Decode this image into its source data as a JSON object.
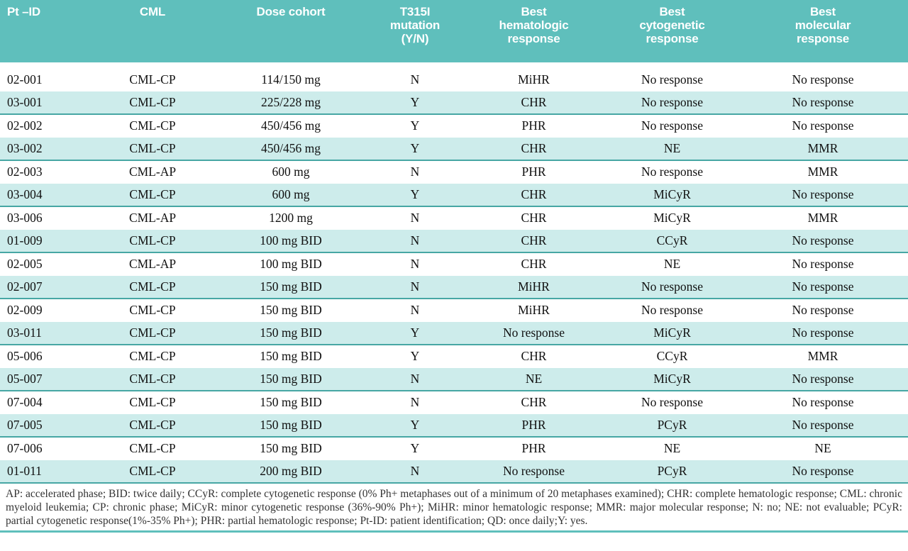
{
  "table": {
    "headers": [
      "Pt –ID",
      "CML",
      "Dose cohort",
      "T315I\nmutation\n(Y/N)",
      "Best\nhematologic\nresponse",
      "Best\ncytogenetic\nresponse",
      "Best\nmolecular\nresponse"
    ],
    "rows": [
      [
        "02-001",
        "CML-CP",
        "114/150 mg",
        "N",
        "MiHR",
        "No response",
        "No response"
      ],
      [
        "03-001",
        "CML-CP",
        "225/228 mg",
        "Y",
        "CHR",
        "No response",
        "No response"
      ],
      [
        "02-002",
        "CML-CP",
        "450/456 mg",
        "Y",
        "PHR",
        "No response",
        "No response"
      ],
      [
        "03-002",
        "CML-CP",
        "450/456 mg",
        "Y",
        "CHR",
        "NE",
        "MMR"
      ],
      [
        "02-003",
        "CML-AP",
        "600 mg",
        "N",
        "PHR",
        "No response",
        "MMR"
      ],
      [
        "03-004",
        "CML-CP",
        "600 mg",
        "Y",
        "CHR",
        "MiCyR",
        "No response"
      ],
      [
        "03-006",
        "CML-AP",
        "1200 mg",
        "N",
        "CHR",
        "MiCyR",
        "MMR"
      ],
      [
        "01-009",
        "CML-CP",
        "100 mg BID",
        "N",
        "CHR",
        "CCyR",
        "No response"
      ],
      [
        "02-005",
        "CML-AP",
        "100 mg BID",
        "N",
        "CHR",
        "NE",
        "No response"
      ],
      [
        "02-007",
        "CML-CP",
        "150 mg BID",
        "N",
        "MiHR",
        "No response",
        "No response"
      ],
      [
        "02-009",
        "CML-CP",
        "150 mg BID",
        "N",
        "MiHR",
        "No response",
        "No response"
      ],
      [
        "03-011",
        "CML-CP",
        "150 mg BID",
        "Y",
        "No response",
        "MiCyR",
        "No response"
      ],
      [
        "05-006",
        "CML-CP",
        "150 mg BID",
        "Y",
        "CHR",
        "CCyR",
        "MMR"
      ],
      [
        "05-007",
        "CML-CP",
        "150 mg BID",
        "N",
        "NE",
        "MiCyR",
        "No response"
      ],
      [
        "07-004",
        "CML-CP",
        "150 mg BID",
        "N",
        "CHR",
        "No response",
        "No response"
      ],
      [
        "07-005",
        "CML-CP",
        "150 mg BID",
        "Y",
        "PHR",
        "PCyR",
        "No response"
      ],
      [
        "07-006",
        "CML-CP",
        "150 mg BID",
        "Y",
        "PHR",
        "NE",
        "NE"
      ],
      [
        "01-011",
        "CML-CP",
        "200 mg BID",
        "N",
        "No response",
        "PCyR",
        "No response"
      ]
    ]
  },
  "footnote": "AP: accelerated phase; BID: twice daily; CCyR: complete cytogenetic response (0% Ph+ metaphases out of a minimum of 20 metaphases examined); CHR: complete hematologic response; CML: chronic myeloid leukemia; CP: chronic phase; MiCyR: minor cytogenetic response (36%-90% Ph+); MiHR: minor hematologic response; MMR: major molecular response; N: no; NE: not evaluable; PCyR: partial cytogenetic response(1%-35% Ph+); PHR: partial hematologic response; Pt-ID: patient identification; QD: once daily;Y: yes.",
  "colors": {
    "header_teal": "#5fbfbc",
    "row_shade": "#cdeceb",
    "divider": "#47a7a4"
  }
}
